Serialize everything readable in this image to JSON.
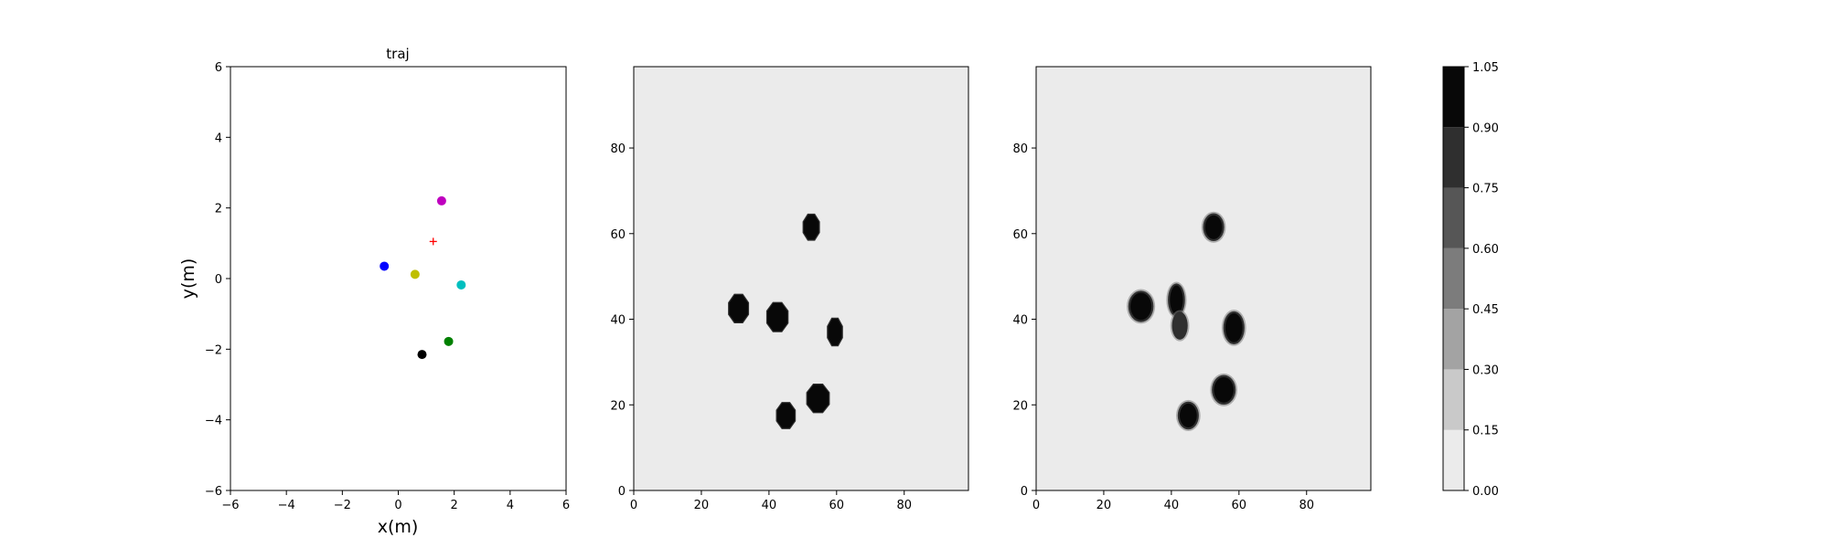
{
  "chart_data": [
    {
      "type": "scatter",
      "title": "traj",
      "xlabel": "x(m)",
      "ylabel": "y(m)",
      "xlim": [
        -6,
        6
      ],
      "ylim": [
        -6,
        6
      ],
      "xticks": [
        -6,
        -4,
        -2,
        0,
        2,
        4,
        6
      ],
      "yticks": [
        -6,
        -4,
        -2,
        0,
        2,
        4,
        6
      ],
      "grid": false,
      "points": [
        {
          "x": 1.55,
          "y": 2.2,
          "color": "#bf00bf",
          "marker": "circle"
        },
        {
          "x": -0.5,
          "y": 0.35,
          "color": "#0000ff",
          "marker": "circle"
        },
        {
          "x": 0.6,
          "y": 0.12,
          "color": "#bfbf00",
          "marker": "circle"
        },
        {
          "x": 2.25,
          "y": -0.18,
          "color": "#00bfbf",
          "marker": "circle"
        },
        {
          "x": 1.8,
          "y": -1.78,
          "color": "#008000",
          "marker": "circle"
        },
        {
          "x": 0.85,
          "y": -2.15,
          "color": "#000000",
          "marker": "circle"
        },
        {
          "x": 1.25,
          "y": 1.05,
          "color": "#ff0000",
          "marker": "plus"
        }
      ]
    },
    {
      "type": "heatmap",
      "xlim": [
        0,
        99
      ],
      "ylim": [
        0,
        99
      ],
      "xticks": [
        0,
        20,
        40,
        60,
        80
      ],
      "yticks": [
        0,
        20,
        40,
        60,
        80
      ],
      "background_value": 0.03,
      "blob_style": "sharp",
      "blobs": [
        {
          "x": 52.5,
          "y": 61.5,
          "rx": 2.6,
          "ry": 3.3,
          "value": 1.0
        },
        {
          "x": 31,
          "y": 42.5,
          "rx": 3.2,
          "ry": 3.6,
          "value": 1.0
        },
        {
          "x": 42.5,
          "y": 40.5,
          "rx": 3.4,
          "ry": 3.7,
          "value": 1.0
        },
        {
          "x": 59.5,
          "y": 37,
          "rx": 2.4,
          "ry": 3.5,
          "value": 1.0
        },
        {
          "x": 45,
          "y": 17.5,
          "rx": 3.0,
          "ry": 3.3,
          "value": 1.0
        },
        {
          "x": 54.5,
          "y": 21.5,
          "rx": 3.6,
          "ry": 3.6,
          "value": 1.0
        }
      ]
    },
    {
      "type": "heatmap",
      "xlim": [
        0,
        99
      ],
      "ylim": [
        0,
        99
      ],
      "xticks": [
        0,
        20,
        40,
        60,
        80
      ],
      "yticks": [
        0,
        20,
        40,
        60,
        80
      ],
      "background_value": 0.03,
      "blob_style": "soft",
      "blobs": [
        {
          "x": 52.5,
          "y": 61.5,
          "rx": 2.8,
          "ry": 3.0,
          "value": 1.0
        },
        {
          "x": 31,
          "y": 43,
          "rx": 3.4,
          "ry": 3.4,
          "value": 1.0
        },
        {
          "x": 41.5,
          "y": 44.5,
          "rx": 2.2,
          "ry": 3.6,
          "value": 0.95
        },
        {
          "x": 42.5,
          "y": 38.5,
          "rx": 2.0,
          "ry": 3.0,
          "value": 0.85
        },
        {
          "x": 58.5,
          "y": 38,
          "rx": 2.8,
          "ry": 3.6,
          "value": 1.0
        },
        {
          "x": 45,
          "y": 17.5,
          "rx": 2.8,
          "ry": 3.0,
          "value": 1.0
        },
        {
          "x": 55.5,
          "y": 23.5,
          "rx": 3.2,
          "ry": 3.2,
          "value": 1.0
        }
      ]
    },
    {
      "type": "colorbar",
      "levels": [
        0.0,
        0.15,
        0.3,
        0.45,
        0.6,
        0.75,
        0.9,
        1.05
      ],
      "tick_labels": [
        "0.00",
        "0.15",
        "0.30",
        "0.45",
        "0.60",
        "0.75",
        "0.90",
        "1.05"
      ],
      "colors": [
        "#ebebeb",
        "#c9c9c9",
        "#a3a3a3",
        "#7c7c7c",
        "#565656",
        "#2f2f2f",
        "#080808"
      ]
    }
  ]
}
